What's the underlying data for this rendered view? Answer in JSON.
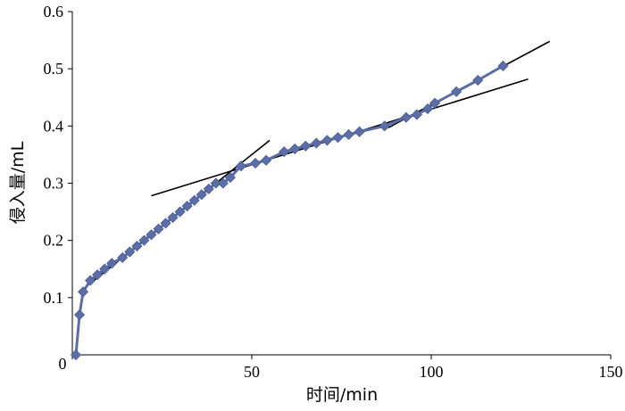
{
  "chart_data": {
    "type": "scatter",
    "title": "",
    "xlabel": "时间/min",
    "ylabel": "侵入量/mL",
    "xlim": [
      0,
      150
    ],
    "ylim": [
      0,
      0.6
    ],
    "x_ticks": [
      "0",
      "50",
      "100",
      "150"
    ],
    "y_ticks": [
      "0.1",
      "0.2",
      "0.3",
      "0.4",
      "0.5",
      "0.6"
    ],
    "grid": false,
    "legend": "none",
    "marker_color": "#5b6fa6",
    "line_color": "#5b6fa6",
    "trend_color": "#000000",
    "series": [
      {
        "marker": "diamond",
        "x": [
          1,
          2,
          3,
          5,
          7,
          9,
          11,
          14,
          16,
          18,
          20,
          22,
          24,
          26,
          28,
          30,
          32,
          34,
          36,
          38,
          40,
          42,
          44,
          47,
          51,
          54,
          59,
          62,
          65,
          68,
          71,
          74,
          77,
          80,
          87,
          93,
          96,
          99,
          101,
          107,
          113,
          120
        ],
        "y": [
          0.0,
          0.07,
          0.11,
          0.13,
          0.14,
          0.15,
          0.16,
          0.17,
          0.18,
          0.19,
          0.2,
          0.21,
          0.22,
          0.23,
          0.24,
          0.25,
          0.26,
          0.27,
          0.28,
          0.29,
          0.3,
          0.3,
          0.31,
          0.33,
          0.335,
          0.34,
          0.355,
          0.36,
          0.365,
          0.37,
          0.375,
          0.38,
          0.385,
          0.39,
          0.4,
          0.415,
          0.42,
          0.43,
          0.44,
          0.46,
          0.48,
          0.505
        ]
      }
    ],
    "trend_lines": [
      {
        "x": [
          3,
          55
        ],
        "y": [
          0.115,
          0.375
        ]
      },
      {
        "x": [
          22,
          127
        ],
        "y": [
          0.278,
          0.482
        ]
      },
      {
        "x": [
          88,
          133
        ],
        "y": [
          0.397,
          0.548
        ]
      }
    ]
  }
}
